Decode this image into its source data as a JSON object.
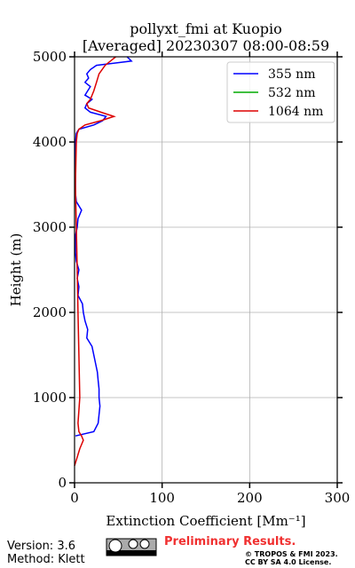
{
  "chart_data": {
    "type": "line",
    "title": "pollyxt_fmi at Kuopio",
    "subtitle": "[Averaged] 20230307 08:00-08:59",
    "x_label": "Extinction Coefficient [Mm⁻¹]",
    "y_label": "Height (m)",
    "xlim": [
      0,
      300
    ],
    "xticks": [
      0,
      100,
      200,
      300
    ],
    "ylim": [
      0,
      5000
    ],
    "yticks": [
      0,
      1000,
      2000,
      3000,
      4000,
      5000
    ],
    "grid": true,
    "legend": "upper right",
    "series": [
      {
        "name": "355 nm",
        "color": "#0000ff",
        "heights": [
          550,
          600,
          700,
          800,
          900,
          1000,
          1100,
          1200,
          1300,
          1400,
          1500,
          1600,
          1700,
          1800,
          1900,
          2000,
          2100,
          2200,
          2300,
          2400,
          2500,
          2600,
          2700,
          2800,
          2900,
          3000,
          3100,
          3200,
          3300,
          3400,
          3500,
          3600,
          3700,
          3800,
          3900,
          4000,
          4100,
          4150,
          4200,
          4250,
          4300,
          4350,
          4400,
          4450,
          4500,
          4550,
          4600,
          4650,
          4700,
          4750,
          4800,
          4850,
          4900,
          4950,
          5000
        ],
        "values": [
          1,
          22,
          27,
          28,
          29,
          28,
          28,
          27,
          26,
          24,
          22,
          20,
          14,
          15,
          12,
          10,
          9,
          4,
          5,
          3,
          5,
          2,
          1,
          1,
          1,
          3,
          4,
          8,
          2,
          1,
          1,
          1,
          1,
          1,
          1,
          1,
          2,
          5,
          22,
          32,
          36,
          18,
          12,
          14,
          20,
          12,
          15,
          18,
          12,
          16,
          14,
          18,
          25,
          65,
          60
        ]
      },
      {
        "name": "532 nm",
        "color": "#00aa00",
        "heights": [],
        "values": []
      },
      {
        "name": "1064 nm",
        "color": "#dd0000",
        "heights": [
          200,
          300,
          400,
          500,
          550,
          600,
          700,
          1000,
          1500,
          2000,
          2500,
          3000,
          3500,
          4000,
          4100,
          4150,
          4200,
          4250,
          4300,
          4350,
          4400,
          4450,
          4500,
          4600,
          4700,
          4800,
          4900,
          5000
        ],
        "values": [
          0,
          3,
          6,
          10,
          8,
          5,
          4,
          6,
          5,
          4,
          3,
          2,
          1,
          2,
          3,
          5,
          12,
          30,
          45,
          30,
          16,
          14,
          18,
          22,
          25,
          28,
          35,
          47
        ]
      }
    ],
    "footer": {
      "version": "Version: 3.6",
      "method": "Method: Klett",
      "notice": "Preliminary Results.",
      "copyright": "© TROPOS & FMI 2023.",
      "license": "CC BY SA 4.0 License."
    }
  }
}
